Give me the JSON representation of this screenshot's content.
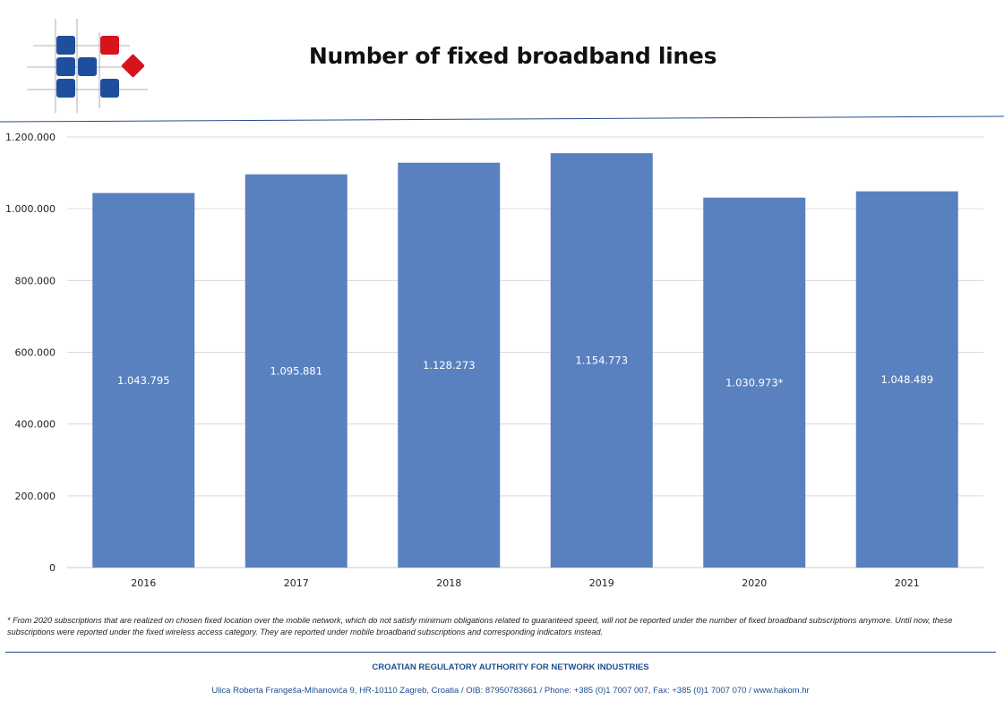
{
  "header": {
    "title": "Number of fixed broadband lines"
  },
  "colors": {
    "bar": "#5981bf",
    "grid": "#d9d9d9",
    "logo_blue": "#1f4f9c",
    "logo_red": "#d6141c",
    "brand_text": "#1f4e8c"
  },
  "chart_data": {
    "type": "bar",
    "title": "Number of fixed broadband lines",
    "categories": [
      "2016",
      "2017",
      "2018",
      "2019",
      "2020",
      "2021"
    ],
    "values": [
      1043795,
      1095881,
      1128273,
      1154773,
      1030973,
      1048489
    ],
    "data_labels": [
      "1.043.795",
      "1.095.881",
      "1.128.273",
      "1.154.773",
      "1.030.973*",
      "1.048.489"
    ],
    "ylim": [
      0,
      1200000
    ],
    "yticks": [
      0,
      200000,
      400000,
      600000,
      800000,
      1000000,
      1200000
    ],
    "ytick_labels": [
      "0",
      "200.000",
      "400.000",
      "600.000",
      "800.000",
      "1.000.000",
      "1.200.000"
    ],
    "grid": true,
    "legend": "none"
  },
  "footnote": "* From 2020 subscriptions that are realized on chosen fixed location over the mobile network, which do not satisfy minimum obligations related to guaranteed speed, will not be reported under the number of fixed broadband subscriptions anymore. Until now, these subscriptions were reported under the fixed wireless access category. They are reported under mobile broadband subscriptions and corresponding indicators instead.",
  "footer": {
    "agency": "CROATIAN REGULATORY AUTHORITY FOR NETWORK INDUSTRIES",
    "address": "Ulica Roberta Frangeša-Mihanovića 9, HR-10110 Zagreb, Croatia / OIB: 87950783661 / Phone: +385 (0)1 7007 007, Fax: +385 (0)1 7007 070 / www.hakom.hr"
  }
}
